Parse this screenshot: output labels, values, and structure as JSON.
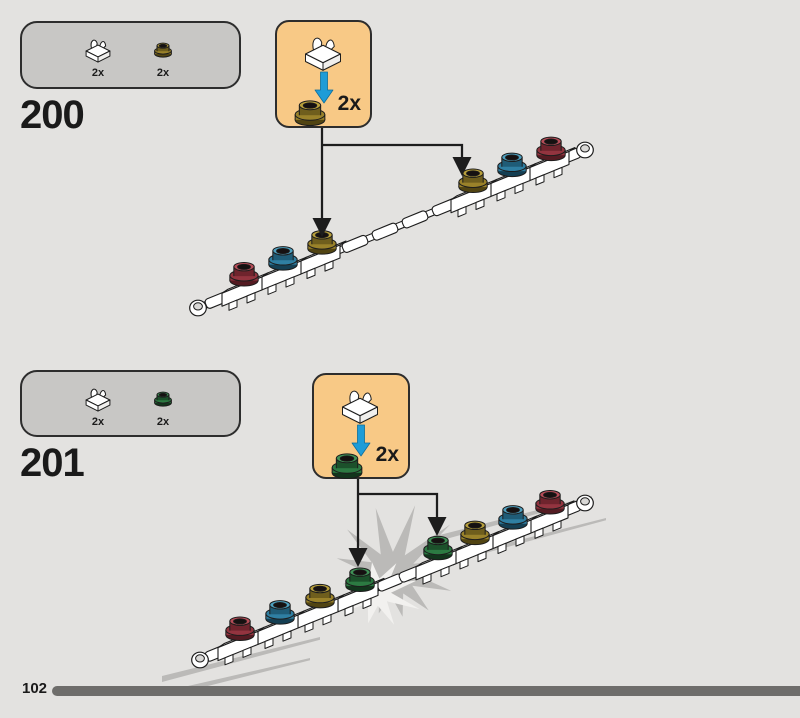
{
  "page": {
    "background": "#E3E2E0",
    "number": "102",
    "footer_bar_color": "#6E6D6B"
  },
  "palette": {
    "outline": "#1D1D1D",
    "callout_bg": "#F8C986",
    "callout_border": "#2D2D2D",
    "partsbox_bg": "#C8C7C5",
    "blue_arrow": "#1E9CD7",
    "white_plastic": "#FFFFFF",
    "starburst_gray": "#BBBAB8",
    "starburst_white": "#F2F1EF"
  },
  "piece_colors": {
    "red": {
      "light": "#B54C57",
      "main": "#93343F",
      "mid": "#6F242D",
      "dark": "#541B22"
    },
    "blue": {
      "light": "#4E9FBE",
      "main": "#2F7FA2",
      "mid": "#1F5C77",
      "dark": "#143F53"
    },
    "gold": {
      "light": "#B89F3B",
      "main": "#9A822A",
      "mid": "#6F5E1D",
      "dark": "#514412"
    },
    "green": {
      "light": "#3F9156",
      "main": "#2C7A42",
      "mid": "#1C512B",
      "dark": "#12351C"
    }
  },
  "steps": [
    {
      "number": "200",
      "parts": [
        {
          "icon": "clip-plate-icon",
          "piece": "white-plate-with-clip",
          "count": "2x"
        },
        {
          "icon": "round-piece-icon",
          "piece": "gold-round-piece",
          "color": "gold",
          "count": "2x"
        }
      ],
      "callout": {
        "top_piece": "white-plate-with-clip",
        "arrow": "blue-down-arrow",
        "bottom_color": "gold",
        "count": "2x"
      },
      "assembly": {
        "description": "flexible-bar-chain",
        "sequence": [
          "red",
          "blue",
          "gold",
          "gold",
          "blue",
          "red"
        ],
        "new_piece_indexes": [
          2,
          3
        ]
      }
    },
    {
      "number": "201",
      "parts": [
        {
          "icon": "clip-plate-icon",
          "piece": "white-plate-with-clip",
          "count": "2x"
        },
        {
          "icon": "round-piece-icon",
          "piece": "green-round-piece",
          "color": "green",
          "count": "2x"
        }
      ],
      "callout": {
        "top_piece": "white-plate-with-clip",
        "arrow": "blue-down-arrow",
        "bottom_color": "green",
        "count": "2x"
      },
      "assembly": {
        "description": "flexible-bar-chain-with-starburst",
        "sequence": [
          "red",
          "blue",
          "gold",
          "green",
          "green",
          "gold",
          "blue",
          "red"
        ],
        "new_piece_indexes": [
          3,
          4
        ],
        "effect": "starburst"
      }
    }
  ]
}
